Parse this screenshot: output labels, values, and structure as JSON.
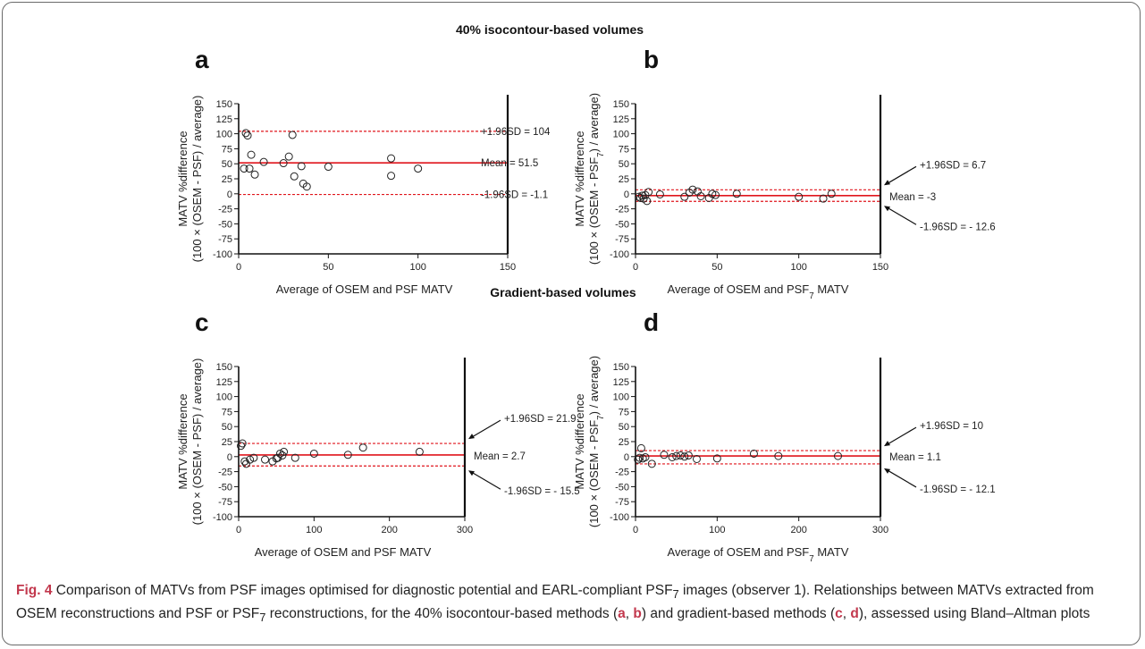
{
  "section_titles": [
    "40% isocontour-based volumes",
    "Gradient-based volumes"
  ],
  "caption": {
    "fig_label": "Fig. 4",
    "text_html": "Comparison of MATVs from PSF images optimised for diagnostic potential and EARL-compliant PSF<sub>7</sub> images (observer 1). Relationships between MATVs extracted from OSEM reconstructions and PSF or PSF<sub>7</sub> reconstructions, for the 40% isocontour-based methods (<b>a</b>, <b>b</b>) and gradient-based methods (<b>c</b>, <b>d</b>), assessed using Bland–Altman plots"
  },
  "colors": {
    "mean_line": "#e0151c",
    "limit_line": "#e0151c",
    "points": "#222222",
    "axis": "#111111"
  },
  "chart_data": [
    {
      "type": "scatter",
      "panel": "a",
      "xlabel": "Average of OSEM and PSF MATV",
      "ylabel": [
        "MATV %difference",
        "(100 × (OSEM - PSF) / average)"
      ],
      "xlim": [
        0,
        150
      ],
      "ylim": [
        -100,
        150
      ],
      "xticks": [
        0,
        50,
        100,
        150
      ],
      "yticks": [
        -100,
        -75,
        -50,
        -25,
        0,
        25,
        50,
        75,
        100,
        125,
        150
      ],
      "mean": 51.5,
      "upper": 104,
      "lower": -1.1,
      "labels": {
        "upper": "+1.96SD = 104",
        "mean": "Mean = 51.5",
        "lower": "-1.96SD = -1.1"
      },
      "label_style": "inline",
      "points": [
        [
          4,
          101
        ],
        [
          5,
          97
        ],
        [
          3,
          42
        ],
        [
          6,
          42
        ],
        [
          7,
          65
        ],
        [
          9,
          32
        ],
        [
          14,
          53
        ],
        [
          25,
          51
        ],
        [
          28,
          62
        ],
        [
          30,
          98
        ],
        [
          31,
          29
        ],
        [
          35,
          46
        ],
        [
          36,
          17
        ],
        [
          38,
          12
        ],
        [
          50,
          45
        ],
        [
          85,
          59
        ],
        [
          85,
          30
        ],
        [
          100,
          42
        ]
      ]
    },
    {
      "type": "scatter",
      "panel": "b",
      "xlabel": "Average of OSEM and PSF7 MATV",
      "ylabel": [
        "MATV %difference",
        "(100 × (OSEM - PSF7) / average)"
      ],
      "xlim": [
        0,
        150
      ],
      "ylim": [
        -100,
        150
      ],
      "xticks": [
        0,
        50,
        100,
        150
      ],
      "yticks": [
        -100,
        -75,
        -50,
        -25,
        0,
        25,
        50,
        75,
        100,
        125,
        150
      ],
      "mean": -3,
      "upper": 6.7,
      "lower": -12.6,
      "labels": {
        "upper": "+1.96SD = 6.7",
        "mean": "Mean = -3",
        "lower": "-1.96SD = - 12.6"
      },
      "label_style": "arrow",
      "points": [
        [
          2,
          -5
        ],
        [
          3,
          -7
        ],
        [
          4,
          -3
        ],
        [
          5,
          -8
        ],
        [
          6,
          -2
        ],
        [
          7,
          -12
        ],
        [
          8,
          3
        ],
        [
          15,
          -1
        ],
        [
          30,
          -5
        ],
        [
          33,
          2
        ],
        [
          35,
          7
        ],
        [
          38,
          4
        ],
        [
          40,
          -4
        ],
        [
          45,
          -7
        ],
        [
          47,
          0
        ],
        [
          49,
          -2
        ],
        [
          62,
          0
        ],
        [
          100,
          -5
        ],
        [
          115,
          -8
        ],
        [
          120,
          0
        ]
      ]
    },
    {
      "type": "scatter",
      "panel": "c",
      "xlabel": "Average of OSEM and PSF MATV",
      "ylabel": [
        "MATV %difference",
        "(100 × (OSEM - PSF) / average)"
      ],
      "xlim": [
        0,
        300
      ],
      "ylim": [
        -100,
        150
      ],
      "xticks": [
        0,
        100,
        200,
        300
      ],
      "yticks": [
        -100,
        -75,
        -50,
        -25,
        0,
        25,
        50,
        75,
        100,
        125,
        150
      ],
      "mean": 2.7,
      "upper": 21.9,
      "lower": -15.5,
      "labels": {
        "upper": "+1.96SD = 21.9",
        "mean": "Mean = 2.7",
        "lower": "-1.96SD = - 15.5"
      },
      "label_style": "arrow",
      "points": [
        [
          3,
          18
        ],
        [
          5,
          22
        ],
        [
          8,
          -8
        ],
        [
          10,
          -12
        ],
        [
          15,
          -5
        ],
        [
          20,
          -2
        ],
        [
          35,
          -5
        ],
        [
          45,
          -8
        ],
        [
          50,
          -3
        ],
        [
          55,
          5
        ],
        [
          60,
          8
        ],
        [
          75,
          -2
        ],
        [
          100,
          5
        ],
        [
          145,
          3
        ],
        [
          165,
          15
        ],
        [
          240,
          8
        ],
        [
          52,
          -2
        ],
        [
          58,
          2
        ]
      ]
    },
    {
      "type": "scatter",
      "panel": "d",
      "xlabel": "Average of OSEM and PSF7 MATV",
      "ylabel": [
        "MATV %difference",
        "(100 × (OSEM - PSF7) / average)"
      ],
      "xlim": [
        0,
        300
      ],
      "ylim": [
        -100,
        150
      ],
      "xticks": [
        0,
        100,
        200,
        300
      ],
      "yticks": [
        -100,
        -75,
        -50,
        -25,
        0,
        25,
        50,
        75,
        100,
        125,
        150
      ],
      "mean": 1.1,
      "upper": 10,
      "lower": -12.1,
      "labels": {
        "upper": "+1.96SD = 10",
        "mean": "Mean = 1.1",
        "lower": "-1.96SD = - 12.1"
      },
      "label_style": "arrow",
      "points": [
        [
          3,
          -5
        ],
        [
          5,
          -2
        ],
        [
          7,
          14
        ],
        [
          9,
          -3
        ],
        [
          12,
          -1
        ],
        [
          20,
          -12
        ],
        [
          35,
          3
        ],
        [
          45,
          -1
        ],
        [
          50,
          1
        ],
        [
          55,
          2
        ],
        [
          60,
          0
        ],
        [
          75,
          -4
        ],
        [
          100,
          -3
        ],
        [
          145,
          5
        ],
        [
          175,
          1
        ],
        [
          248,
          1
        ],
        [
          65,
          2
        ]
      ]
    }
  ]
}
